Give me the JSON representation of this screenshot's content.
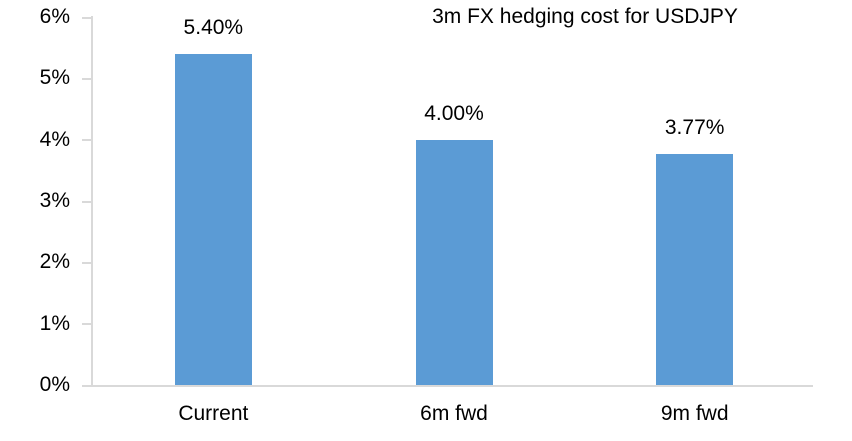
{
  "chart_data": {
    "type": "bar",
    "title": "3m FX hedging cost for USDJPY",
    "categories": [
      "Current",
      "6m fwd",
      "9m fwd"
    ],
    "values": [
      5.4,
      4.0,
      3.77
    ],
    "value_labels": [
      "5.40%",
      "4.00%",
      "3.77%"
    ],
    "xlabel": "",
    "ylabel": "",
    "ylim": [
      0,
      6
    ],
    "ytick_step": 1,
    "ytick_labels": [
      "0%",
      "1%",
      "2%",
      "3%",
      "4%",
      "5%",
      "6%"
    ],
    "grid": "off",
    "legend": "none",
    "colors": {
      "bar_fill": "#5B9BD5",
      "axis_line": "#D9D9D9",
      "text": "#000000",
      "background": "#FFFFFF"
    }
  }
}
